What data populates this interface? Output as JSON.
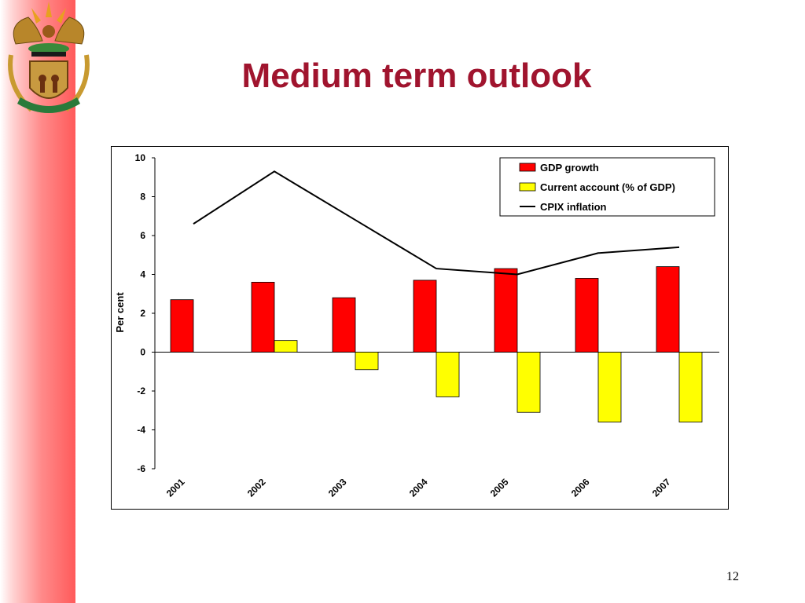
{
  "slide": {
    "title": "Medium term outlook",
    "page_number": "12",
    "accent_color": "#a0142e",
    "emblem_icon": "coat-of-arms-icon"
  },
  "chart_data": {
    "type": "bar",
    "categories": [
      "2001",
      "2002",
      "2003",
      "2004",
      "2005",
      "2006",
      "2007"
    ],
    "ylabel": "Per cent",
    "xlabel": "",
    "ylim": [
      -6,
      10
    ],
    "yticks": [
      "10",
      "8",
      "6",
      "4",
      "2",
      "0",
      "-2",
      "-4",
      "-6"
    ],
    "grid": false,
    "legend_position": "top-right",
    "series": [
      {
        "name": "GDP growth",
        "kind": "bar",
        "color": "#ff0000",
        "values": [
          2.7,
          3.6,
          2.8,
          3.7,
          4.3,
          3.8,
          4.4
        ]
      },
      {
        "name": "Current account (% of GDP)",
        "kind": "bar",
        "color": "#ffff00",
        "values": [
          null,
          0.6,
          -0.9,
          -2.3,
          -3.1,
          -3.6,
          -3.6
        ]
      },
      {
        "name": "CPIX inflation",
        "kind": "line",
        "color": "#000000",
        "values": [
          6.6,
          9.3,
          6.8,
          4.3,
          4.0,
          5.1,
          5.4
        ]
      }
    ]
  }
}
